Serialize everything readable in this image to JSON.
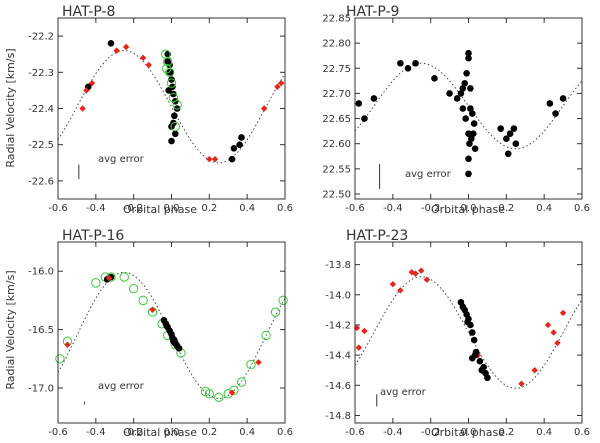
{
  "colors": {
    "axis": "#333333",
    "model": "#444444",
    "black_points": "#000000",
    "red_points": "#e8251a",
    "green_rings": "#33cc33",
    "title": "#555555"
  },
  "chart_data": [
    {
      "type": "scatter",
      "title": "HAT-P-8",
      "xlabel": "Orbital phase",
      "ylabel": "Radial Velocity  [km/s]",
      "xlim": [
        -0.6,
        0.6
      ],
      "ylim": [
        -22.65,
        -22.15
      ],
      "xticks": [
        -0.6,
        -0.4,
        -0.2,
        0.0,
        0.2,
        0.4,
        0.6
      ],
      "xtick_labels": [
        "-0.6",
        "-0.4",
        "-0.2",
        "0.0",
        "0.2",
        "0.4",
        "0.6"
      ],
      "yticks": [
        -22.2,
        -22.3,
        -22.4,
        -22.5,
        -22.6
      ],
      "ytick_labels": [
        "-22.2",
        "-22.3",
        "-22.4",
        "-22.5",
        "-22.6"
      ],
      "avg_error_label": "avg error",
      "error_bar": {
        "x": -0.49,
        "y": -22.575,
        "half": 0.02
      },
      "model": {
        "type": "sine",
        "offset": -22.395,
        "amplitude": 0.155
      },
      "series": [
        {
          "name": "black",
          "marker": "dot",
          "x": [
            -0.32,
            -0.44,
            -0.02,
            -0.01,
            -0.005,
            0.0,
            0.005,
            0.01,
            0.02,
            0.03,
            -0.015,
            0.015,
            0.0,
            0.0,
            0.32,
            0.33,
            0.36,
            0.37,
            -0.02,
            0.01,
            0.02,
            -0.01
          ],
          "y": [
            -22.22,
            -22.34,
            -22.25,
            -22.28,
            -22.3,
            -22.32,
            -22.34,
            -22.36,
            -22.38,
            -22.4,
            -22.35,
            -22.42,
            -22.45,
            -22.49,
            -22.54,
            -22.51,
            -22.5,
            -22.48,
            -22.27,
            -22.44,
            -22.47,
            -22.3
          ]
        },
        {
          "name": "red",
          "marker": "diamond",
          "x": [
            -0.47,
            -0.45,
            -0.42,
            -0.29,
            -0.24,
            -0.15,
            -0.12,
            0.2,
            0.23,
            0.49,
            0.56,
            0.58
          ],
          "y": [
            -22.4,
            -22.35,
            -22.33,
            -22.24,
            -22.23,
            -22.26,
            -22.28,
            -22.54,
            -22.54,
            -22.4,
            -22.34,
            -22.33
          ]
        },
        {
          "name": "green",
          "marker": "ring",
          "x": [
            -0.03,
            -0.02,
            -0.01,
            0.0,
            0.01,
            0.03,
            -0.025,
            0.02
          ],
          "y": [
            -22.25,
            -22.27,
            -22.3,
            -22.33,
            -22.37,
            -22.39,
            -22.29,
            -22.45
          ]
        }
      ]
    },
    {
      "type": "scatter",
      "title": "HAT-P-9",
      "xlabel": "Orbital phase",
      "ylabel": "",
      "xlim": [
        -0.6,
        0.6
      ],
      "ylim": [
        22.49,
        22.85
      ],
      "xticks": [
        -0.6,
        -0.4,
        -0.2,
        0.0,
        0.2,
        0.4,
        0.6
      ],
      "xtick_labels": [
        "-0.6",
        "-0.4",
        "-0.2",
        "0.0",
        "0.2",
        "0.4",
        "0.6"
      ],
      "yticks": [
        22.85,
        22.8,
        22.75,
        22.7,
        22.65,
        22.6,
        22.55,
        22.5
      ],
      "ytick_labels": [
        "22.85",
        "22.80",
        "22.75",
        "22.70",
        "22.65",
        "22.60",
        "22.55",
        "22.50"
      ],
      "avg_error_label": "avg error",
      "error_bar": {
        "x": -0.47,
        "y": 22.535,
        "half": 0.025
      },
      "model": {
        "type": "sine",
        "offset": 22.675,
        "amplitude": 0.085
      },
      "series": [
        {
          "name": "black",
          "marker": "dot",
          "x": [
            -0.58,
            -0.55,
            -0.5,
            -0.36,
            -0.32,
            -0.28,
            -0.18,
            -0.1,
            -0.06,
            -0.04,
            -0.03,
            -0.02,
            -0.01,
            0.0,
            0.0,
            0.01,
            0.01,
            0.02,
            0.03,
            -0.03,
            -0.015,
            0.0,
            0.005,
            0.015,
            0.025,
            0.035,
            0.0,
            0.2,
            0.21,
            0.22,
            0.24,
            0.25,
            0.17,
            0.43,
            0.46,
            0.5,
            0.0
          ],
          "y": [
            22.68,
            22.65,
            22.69,
            22.76,
            22.75,
            22.76,
            22.73,
            22.7,
            22.69,
            22.7,
            22.71,
            22.72,
            22.74,
            22.77,
            22.78,
            22.71,
            22.67,
            22.66,
            22.64,
            22.67,
            22.65,
            22.62,
            22.6,
            22.61,
            22.62,
            22.59,
            22.54,
            22.61,
            22.58,
            22.62,
            22.63,
            22.6,
            22.63,
            22.68,
            22.66,
            22.69,
            22.57
          ]
        }
      ]
    },
    {
      "type": "scatter",
      "title": "HAT-P-16",
      "xlabel": "Orbital phase",
      "ylabel": "Radial Velocity  [km/s]",
      "xlim": [
        -0.6,
        0.6
      ],
      "ylim": [
        -17.3,
        -15.75
      ],
      "xticks": [
        -0.6,
        -0.4,
        -0.2,
        0.0,
        0.2,
        0.4,
        0.6
      ],
      "xtick_labels": [
        "-0.6",
        "-0.4",
        "-0.2",
        "0.0",
        "0.2",
        "0.4",
        "0.6"
      ],
      "yticks": [
        -16.0,
        -16.5,
        -17.0
      ],
      "ytick_labels": [
        "-16.0",
        "-16.5",
        "-17.0"
      ],
      "avg_error_label": "avg error",
      "error_bar": {
        "x": -0.46,
        "y": -17.13,
        "half": 0.012
      },
      "model": {
        "type": "sine",
        "offset": -16.55,
        "amplitude": 0.54
      },
      "series": [
        {
          "name": "green",
          "marker": "ring",
          "x": [
            -0.59,
            -0.55,
            -0.4,
            -0.35,
            -0.32,
            -0.25,
            -0.2,
            -0.15,
            -0.1,
            -0.05,
            -0.02,
            0.02,
            0.05,
            0.18,
            0.2,
            0.25,
            0.3,
            0.33,
            0.37,
            0.42,
            0.5,
            0.55,
            0.59
          ],
          "y": [
            -16.75,
            -16.6,
            -16.1,
            -16.05,
            -16.05,
            -16.05,
            -16.15,
            -16.25,
            -16.35,
            -16.45,
            -16.55,
            -16.63,
            -16.7,
            -17.03,
            -17.05,
            -17.08,
            -17.05,
            -17.02,
            -16.95,
            -16.8,
            -16.55,
            -16.35,
            -16.25
          ]
        },
        {
          "name": "black",
          "marker": "dot",
          "x": [
            -0.34,
            -0.32,
            -0.04,
            -0.03,
            -0.02,
            -0.01,
            0.0,
            0.005,
            0.01,
            0.02,
            0.03,
            0.04,
            -0.025,
            0.015
          ],
          "y": [
            -16.07,
            -16.05,
            -16.42,
            -16.45,
            -16.48,
            -16.51,
            -16.54,
            -16.57,
            -16.6,
            -16.62,
            -16.64,
            -16.66,
            -16.47,
            -16.59
          ]
        },
        {
          "name": "red",
          "marker": "diamond",
          "x": [
            -0.55,
            -0.33,
            -0.1,
            0.32,
            0.46
          ],
          "y": [
            -16.63,
            -16.06,
            -16.33,
            -17.04,
            -16.78
          ]
        }
      ]
    },
    {
      "type": "scatter",
      "title": "HAT-P-23",
      "xlabel": "Orbital phase",
      "ylabel": "",
      "xlim": [
        -0.6,
        0.6
      ],
      "ylim": [
        -14.85,
        -13.65
      ],
      "xticks": [
        -0.6,
        -0.4,
        -0.2,
        0.0,
        0.2,
        0.4,
        0.6
      ],
      "xtick_labels": [
        "-0.6",
        "-0.4",
        "-0.2",
        "0.0",
        "0.2",
        "0.4",
        "0.6"
      ],
      "yticks": [
        -13.8,
        -14.0,
        -14.2,
        -14.4,
        -14.6,
        -14.8
      ],
      "ytick_labels": [
        "-13.8",
        "-14.0",
        "-14.2",
        "-14.4",
        "-14.6",
        "-14.8"
      ],
      "avg_error_label": "avg error",
      "error_bar": {
        "x": -0.485,
        "y": -14.7,
        "half": 0.04
      },
      "model": {
        "type": "sine",
        "offset": -14.25,
        "amplitude": 0.37
      },
      "series": [
        {
          "name": "red",
          "marker": "diamond",
          "x": [
            -0.59,
            -0.58,
            -0.55,
            -0.4,
            -0.36,
            -0.3,
            -0.28,
            -0.25,
            -0.22,
            0.05,
            0.28,
            0.35,
            0.42,
            0.45,
            0.47,
            0.5
          ],
          "y": [
            -14.22,
            -14.35,
            -14.24,
            -13.93,
            -13.97,
            -13.85,
            -13.86,
            -13.84,
            -13.9,
            -14.4,
            -14.59,
            -14.5,
            -14.2,
            -14.25,
            -14.32,
            -14.12
          ]
        },
        {
          "name": "black",
          "marker": "dot",
          "x": [
            -0.04,
            -0.03,
            -0.02,
            -0.01,
            0.0,
            0.01,
            0.02,
            0.03,
            0.04,
            0.06,
            0.08,
            0.09,
            0.1,
            0.02,
            -0.005,
            0.035,
            0.07
          ],
          "y": [
            -14.05,
            -14.08,
            -14.1,
            -14.13,
            -14.16,
            -14.2,
            -14.25,
            -14.3,
            -14.38,
            -14.44,
            -14.48,
            -14.52,
            -14.55,
            -14.42,
            -14.18,
            -14.4,
            -14.5
          ]
        }
      ]
    }
  ]
}
